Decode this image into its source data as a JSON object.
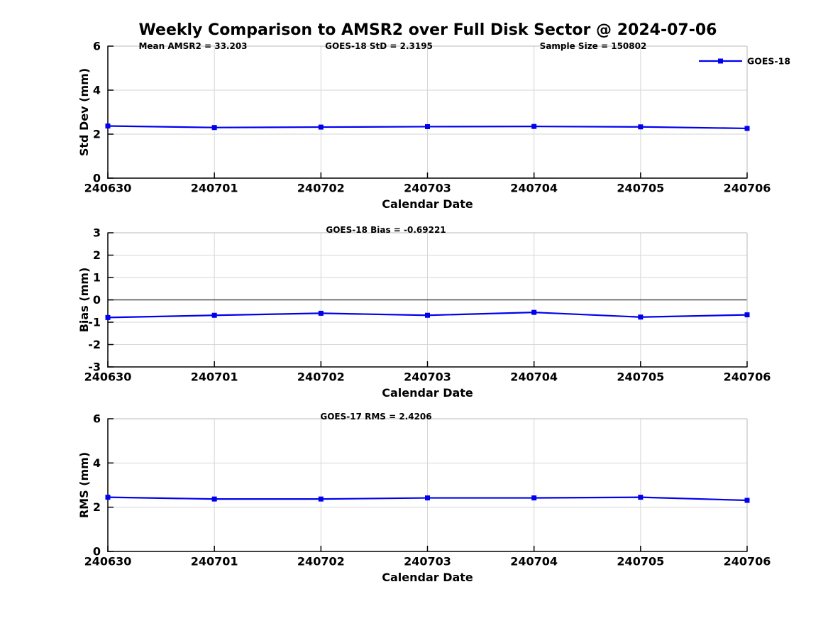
{
  "title": "Weekly Comparison to AMSR2 over Full Disk Sector @ 2024-07-06",
  "colors": {
    "line": "#0000EE",
    "marker": "#0000EE",
    "grid": "#d6d6d6",
    "box_spine": "#b8b8b8",
    "axis_spine": "#000000",
    "zero_line": "#4a4a4a",
    "text": "#000000"
  },
  "legend": {
    "label": "GOES-18"
  },
  "chart_data": [
    {
      "id": "stddev",
      "type": "line",
      "annotations": [
        "Mean AMSR2 = 33.203",
        "GOES-18 StD = 2.3195",
        "Sample Size = 150802"
      ],
      "ylabel": "Std Dev (mm)",
      "xlabel": "Calendar Date",
      "categories": [
        "240630",
        "240701",
        "240702",
        "240703",
        "240704",
        "240705",
        "240706"
      ],
      "series": [
        {
          "name": "GOES-18",
          "values": [
            2.37,
            2.3,
            2.32,
            2.34,
            2.35,
            2.33,
            2.26
          ]
        }
      ],
      "ylim": [
        0,
        6
      ],
      "yticks": [
        0,
        2,
        4,
        6
      ],
      "grid": true,
      "zero_line": false,
      "legend_position": "top-right-outside"
    },
    {
      "id": "bias",
      "type": "line",
      "annotations": [
        "GOES-18 Bias  = -0.69221"
      ],
      "ylabel": "Bias (mm)",
      "xlabel": "Calendar Date",
      "categories": [
        "240630",
        "240701",
        "240702",
        "240703",
        "240704",
        "240705",
        "240706"
      ],
      "series": [
        {
          "name": "GOES-18",
          "values": [
            -0.79,
            -0.69,
            -0.6,
            -0.69,
            -0.56,
            -0.77,
            -0.67
          ]
        }
      ],
      "ylim": [
        -3,
        3
      ],
      "yticks": [
        -3,
        -2,
        -1,
        0,
        1,
        2,
        3
      ],
      "grid": true,
      "zero_line": true,
      "legend_position": "none"
    },
    {
      "id": "rms",
      "type": "line",
      "annotations": [
        "GOES-17 RMS = 2.4206"
      ],
      "ylabel": "RMS (mm)",
      "xlabel": "Calendar Date",
      "categories": [
        "240630",
        "240701",
        "240702",
        "240703",
        "240704",
        "240705",
        "240706"
      ],
      "series": [
        {
          "name": "GOES-18",
          "values": [
            2.45,
            2.37,
            2.37,
            2.42,
            2.42,
            2.45,
            2.31
          ]
        }
      ],
      "ylim": [
        0,
        6
      ],
      "yticks": [
        0,
        2,
        4,
        6
      ],
      "grid": true,
      "zero_line": false,
      "legend_position": "none"
    }
  ]
}
